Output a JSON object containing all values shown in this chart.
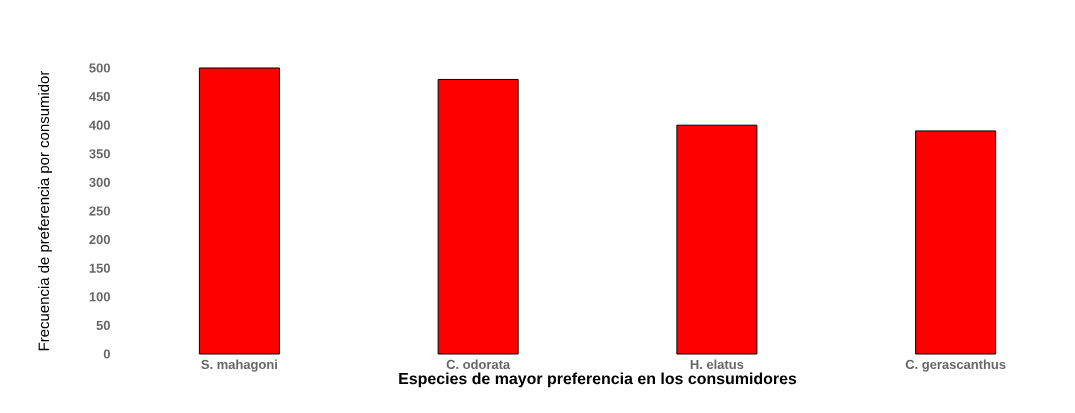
{
  "chart_data": {
    "type": "bar",
    "xlabel": "Especies de mayor preferencia en los consumidores",
    "ylabel": "Frecuencia de preferencia por consumidor",
    "categories": [
      "S. mahagoni",
      "C. odorata",
      "H. elatus",
      "C. gerascanthus"
    ],
    "values": [
      500,
      480,
      400,
      390
    ],
    "color": "#ff0000",
    "ylim": [
      0,
      500
    ],
    "yticks": [
      0,
      50,
      100,
      150,
      200,
      250,
      300,
      350,
      400,
      450,
      500
    ],
    "grid": false
  }
}
